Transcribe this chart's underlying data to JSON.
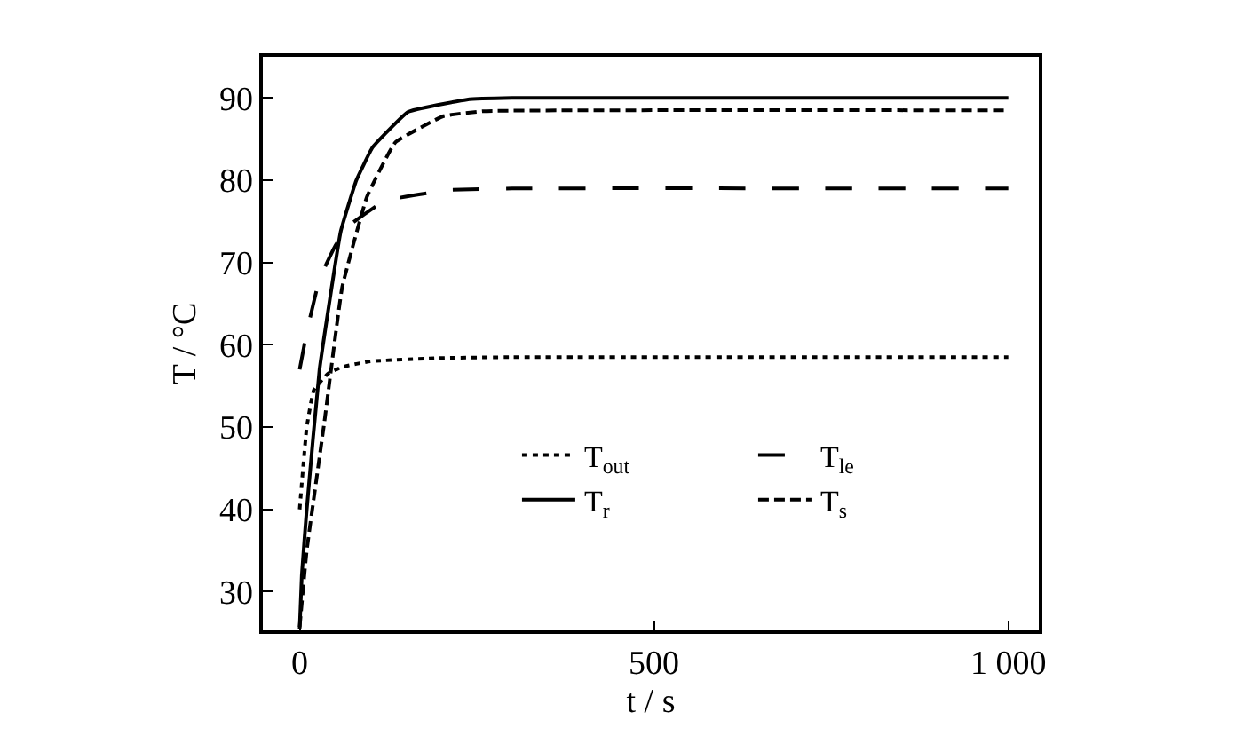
{
  "chart_data": {
    "type": "line",
    "xlabel": "t / s",
    "ylabel": "T / °C",
    "xlim": [
      -52,
      1043
    ],
    "ylim": [
      25.3,
      95
    ],
    "xticks": [
      0,
      500,
      {
        "value": 1000,
        "label": "1 000"
      }
    ],
    "yticks": [
      30,
      40,
      50,
      60,
      70,
      80,
      90
    ],
    "legend": "right",
    "marker": "none",
    "series": [
      {
        "name": "T$_{out}$",
        "color": "#000000",
        "line_style": "dotted",
        "x": [
          0,
          10,
          20,
          40,
          60,
          100,
          200,
          300,
          1000
        ],
        "values": [
          40,
          50,
          54.5,
          56.5,
          57.3,
          58,
          58.4,
          58.5,
          58.5
        ]
      },
      {
        "name": "T$_{le}$",
        "color": "#000000",
        "line_style": "long dashed",
        "x": [
          0,
          10,
          28,
          50,
          70,
          120,
          210,
          300,
          1000
        ],
        "values": [
          57,
          61.5,
          68,
          72,
          74.5,
          77.5,
          78.8,
          79,
          79
        ]
      },
      {
        "name": "T$_{r}$",
        "color": "#000000",
        "line_style": "solid",
        "x": [
          0,
          3,
          10,
          28,
          58,
          80,
          103,
          153,
          236,
          300,
          1000
        ],
        "values": [
          25.5,
          32,
          40,
          57,
          73.8,
          80,
          84,
          88.3,
          89.8,
          90,
          90
        ]
      },
      {
        "name": "T$_{s}$",
        "color": "#000000",
        "line_style": "dashed",
        "x": [
          0,
          10,
          35,
          60,
          95,
          135,
          203,
          260,
          1000
        ],
        "values": [
          25.7,
          35,
          50.7,
          67,
          78,
          84.6,
          87.8,
          88.4,
          88.5
        ]
      }
    ]
  }
}
